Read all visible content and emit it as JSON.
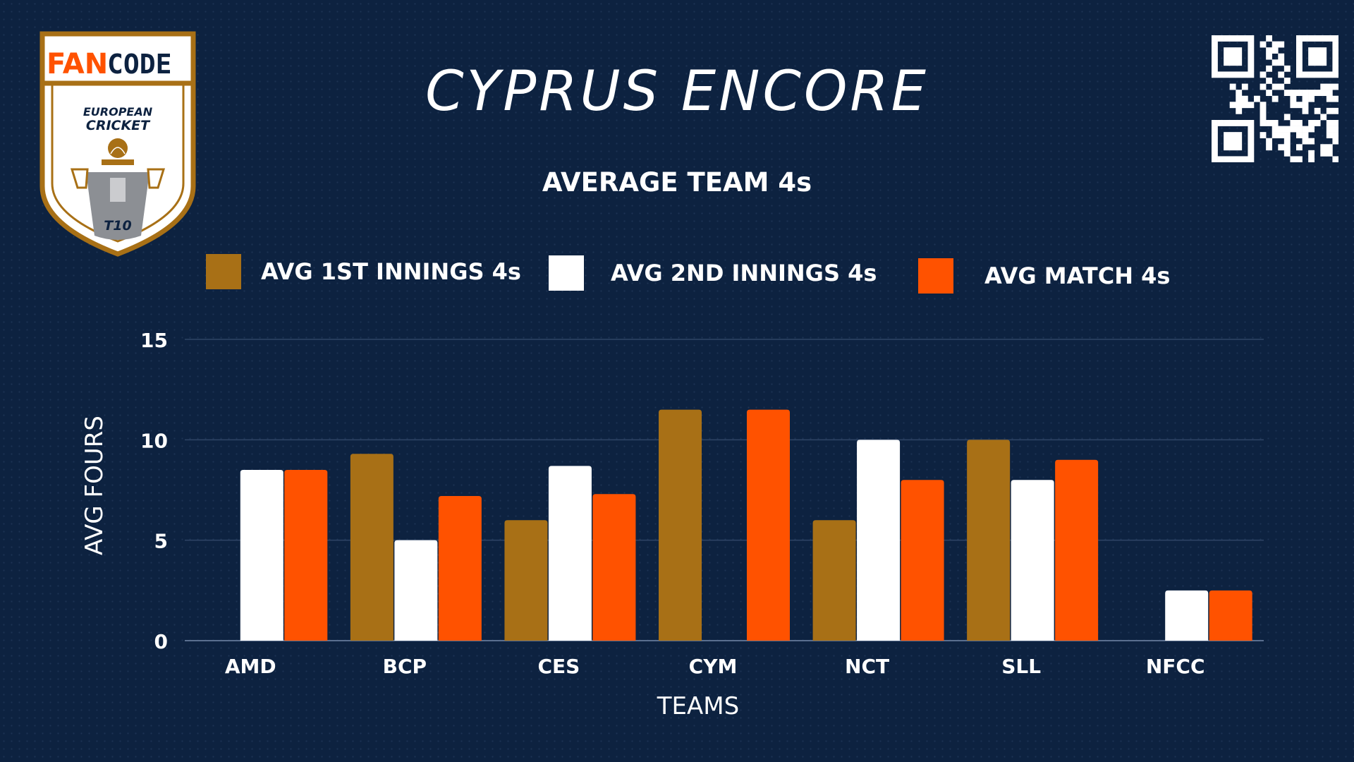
{
  "header": {
    "title": "CYPRUS ENCORE",
    "logo": {
      "brand_part1": "FAN",
      "brand_part2": "CODE",
      "line1": "EUROPEAN",
      "line2": "CRICKET",
      "badge": "T10"
    },
    "qr_icon": "qr-code-icon"
  },
  "colors": {
    "background": "#0d2240",
    "first_innings": "#a87016",
    "second_innings": "#ffffff",
    "match": "#ff5200"
  },
  "chart_data": {
    "type": "bar",
    "title": "AVERAGE TEAM 4s",
    "xlabel": "TEAMS",
    "ylabel": "AVG FOURS",
    "categories": [
      "AMD",
      "BCP",
      "CES",
      "CYM",
      "NCT",
      "SLL",
      "NFCC"
    ],
    "ylim": [
      0,
      15
    ],
    "yticks": [
      0,
      5,
      10,
      15
    ],
    "grid": true,
    "legend_position": "top",
    "series": [
      {
        "name": "AVG 1ST INNINGS 4s",
        "color": "#a87016",
        "values": [
          0,
          9.3,
          6,
          11.5,
          6,
          10,
          0
        ]
      },
      {
        "name": "AVG 2ND INNINGS 4s",
        "color": "#ffffff",
        "values": [
          8.5,
          5,
          8.7,
          0,
          10,
          8,
          2.5
        ]
      },
      {
        "name": "AVG MATCH 4s",
        "color": "#ff5200",
        "values": [
          8.5,
          7.2,
          7.3,
          11.5,
          8,
          9,
          2.5
        ]
      }
    ]
  }
}
